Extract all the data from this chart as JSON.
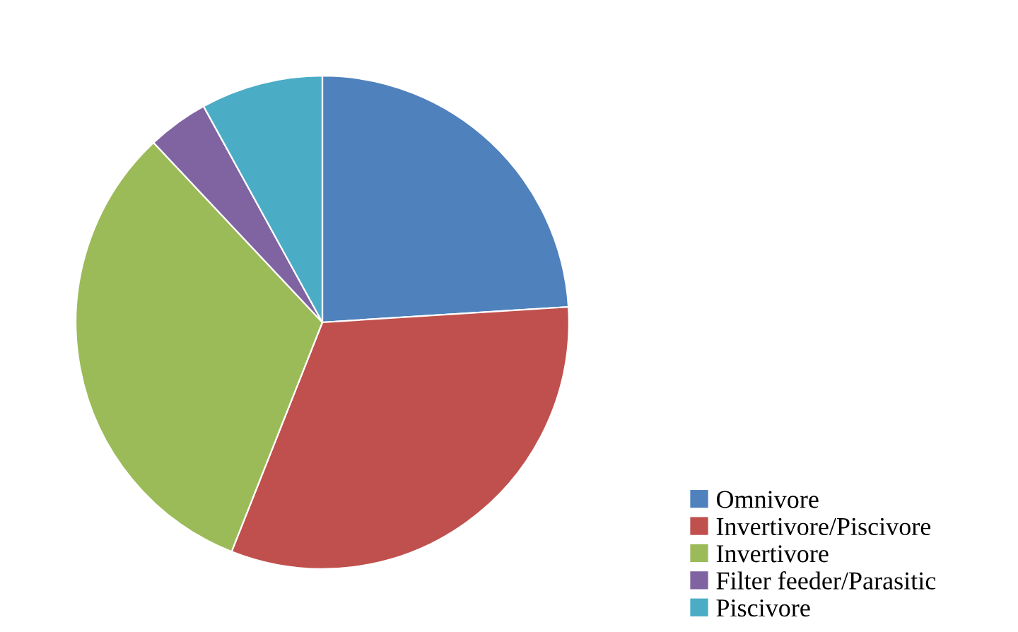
{
  "chart_data": {
    "type": "pie",
    "categories": [
      "Omnivore",
      "Invertivore/Piscivore",
      "Invertivore",
      "Filter feeder/Parasitic",
      "Piscivore"
    ],
    "values": [
      24,
      32,
      32,
      4,
      8
    ],
    "colors": [
      "#4f81bd",
      "#c0504d",
      "#9bbb59",
      "#8064a2",
      "#4bacc6"
    ],
    "legend": "bottom right"
  }
}
